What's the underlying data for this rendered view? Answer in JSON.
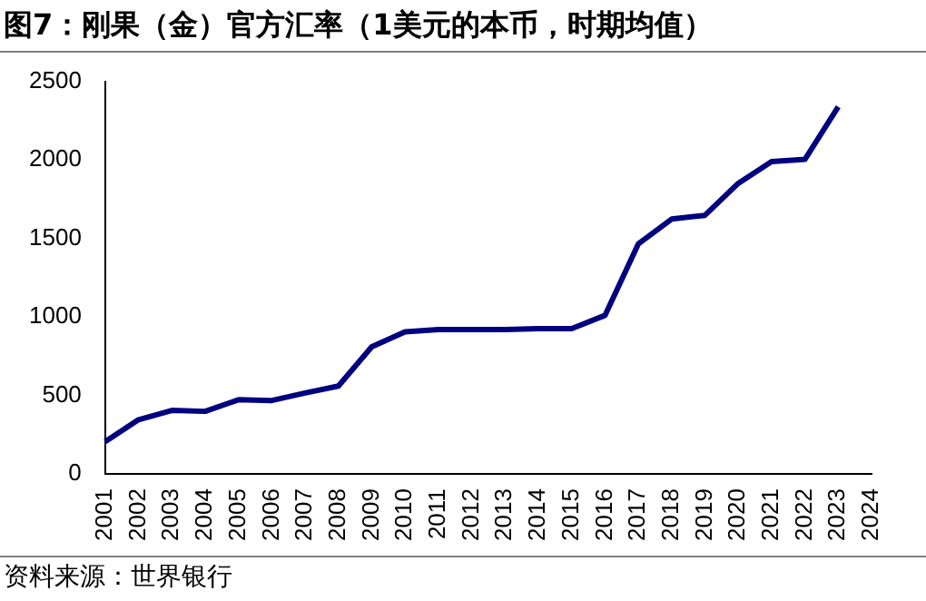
{
  "chart_data": {
    "type": "line",
    "title": "图7：刚果（金）官方汇率（1美元的本币，时期均值）",
    "categories": [
      "2001",
      "2002",
      "2003",
      "2004",
      "2005",
      "2006",
      "2007",
      "2008",
      "2009",
      "2010",
      "2011",
      "2012",
      "2013",
      "2014",
      "2015",
      "2016",
      "2017",
      "2018",
      "2019",
      "2020",
      "2021",
      "2022",
      "2023",
      "2024"
    ],
    "series": [
      {
        "color": "#000080",
        "values": [
          206,
          346,
          405,
          399,
          473,
          468,
          516,
          560,
          810,
          905,
          920,
          920,
          920,
          925,
          926,
          1010,
          1465,
          1623,
          1647,
          1851,
          1989,
          2003,
          2338,
          null
        ]
      }
    ],
    "ylim": [
      0,
      2500
    ],
    "yticks": [
      0,
      500,
      1000,
      1500,
      2000,
      2500
    ],
    "grid": false,
    "legend": false,
    "marker": "none",
    "line_style": "solid",
    "annotations": [
      "资料来源：世界银行"
    ]
  }
}
